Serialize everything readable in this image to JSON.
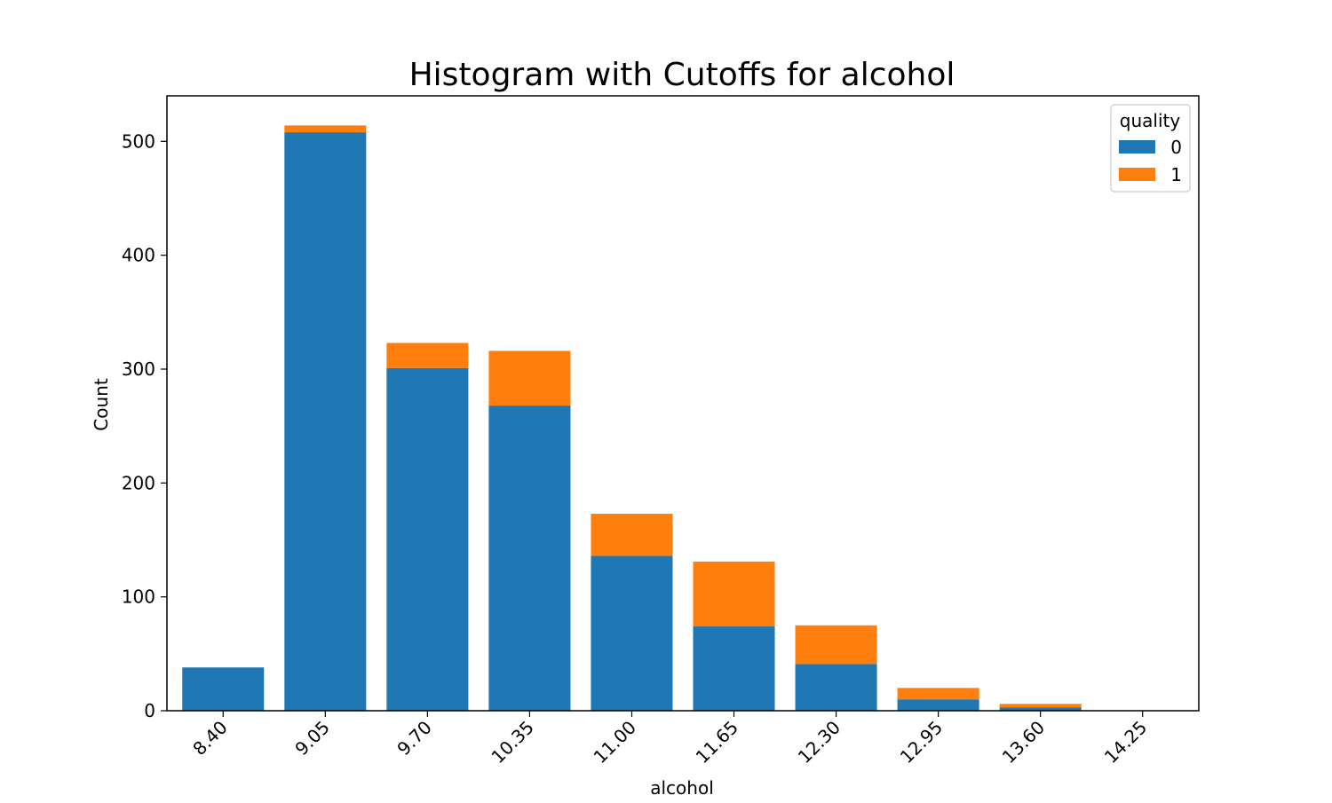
{
  "chart_data": {
    "type": "bar",
    "stacked": true,
    "title": "Histogram with Cutoffs for alcohol",
    "xlabel": "alcohol",
    "ylabel": "Count",
    "categories": [
      "8.40",
      "9.05",
      "9.70",
      "10.35",
      "11.00",
      "11.65",
      "12.30",
      "12.95",
      "13.60",
      "14.25"
    ],
    "series": [
      {
        "name": "0",
        "color": "#1f77b4",
        "values": [
          38,
          508,
          301,
          268,
          136,
          74,
          41,
          10,
          3,
          0
        ]
      },
      {
        "name": "1",
        "color": "#ff7f0e",
        "values": [
          0,
          6,
          22,
          48,
          37,
          57,
          34,
          10,
          3,
          0
        ]
      }
    ],
    "ylim": [
      0,
      540
    ],
    "yticks": [
      0,
      100,
      200,
      300,
      400,
      500
    ],
    "grid": false,
    "legend": {
      "title": "quality",
      "position": "top-right"
    }
  }
}
